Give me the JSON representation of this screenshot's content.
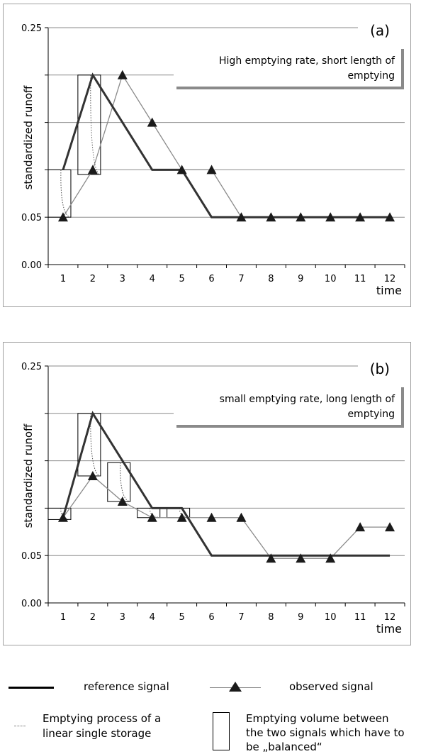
{
  "chart_data": [
    {
      "type": "line",
      "panel_label": "(a)",
      "annotation": [
        "High emptying rate, short length of",
        "emptying"
      ],
      "ylabel": "standardized runoff",
      "xlabel": "time",
      "x": [
        1,
        2,
        3,
        4,
        5,
        6,
        7,
        8,
        9,
        10,
        11,
        12
      ],
      "x_tick_labels": [
        "1",
        "2",
        "3",
        "4",
        "5",
        "6",
        "7",
        "8",
        "9",
        "10",
        "11",
        "12"
      ],
      "y_tick_labels": [
        "0.00",
        "0.05",
        "0.25"
      ],
      "ylim": [
        0,
        0.25
      ],
      "series": [
        {
          "role": "reference",
          "values": [
            0.1,
            0.2,
            0.15,
            0.1,
            0.1,
            0.05,
            0.05,
            0.05,
            0.05,
            0.05,
            0.05,
            0.05
          ]
        },
        {
          "role": "observed",
          "values": [
            0.05,
            0.1,
            0.2,
            0.15,
            0.1,
            0.1,
            0.05,
            0.05,
            0.05,
            0.05,
            0.05,
            0.05
          ]
        }
      ],
      "emptying_boxes": [
        {
          "x": 1,
          "y_top": 0.1,
          "y_bottom": 0.05
        },
        {
          "x": 2,
          "y_top": 0.2,
          "y_bottom": 0.095
        }
      ]
    },
    {
      "type": "line",
      "panel_label": "(b)",
      "annotation": [
        "small emptying rate,  long length of",
        "emptying"
      ],
      "ylabel": "standardized runoff",
      "xlabel": "time",
      "x": [
        1,
        2,
        3,
        4,
        5,
        6,
        7,
        8,
        9,
        10,
        11,
        12
      ],
      "x_tick_labels": [
        "1",
        "2",
        "3",
        "4",
        "5",
        "6",
        "7",
        "8",
        "9",
        "10",
        "11",
        "12"
      ],
      "y_tick_labels": [
        "0.00",
        "0.05",
        "0.25"
      ],
      "ylim": [
        0,
        0.25
      ],
      "series": [
        {
          "role": "reference",
          "values": [
            0.09,
            0.2,
            0.15,
            0.1,
            0.1,
            0.05,
            0.05,
            0.05,
            0.05,
            0.05,
            0.05,
            0.05
          ]
        },
        {
          "role": "observed",
          "values": [
            0.09,
            0.134,
            0.107,
            0.09,
            0.09,
            0.09,
            0.09,
            0.047,
            0.047,
            0.047,
            0.08,
            0.08
          ]
        }
      ],
      "emptying_boxes": [
        {
          "x": 1,
          "y_top": 0.1,
          "y_bottom": 0.088
        },
        {
          "x": 2,
          "y_top": 0.2,
          "y_bottom": 0.134
        },
        {
          "x": 3,
          "y_top": 0.148,
          "y_bottom": 0.107
        },
        {
          "x": 4,
          "y_top": 0.1,
          "y_bottom": 0.09
        },
        {
          "x": 5,
          "y_top": 0.1,
          "y_bottom": 0.09
        }
      ]
    }
  ],
  "legend": {
    "reference_label": "reference signal",
    "observed_label": "observed signal",
    "storage_label": [
      "Emptying process of a",
      "linear single storage"
    ],
    "volume_label": [
      "Emptying volume between",
      "the two signals which have to",
      "be „balanced“"
    ]
  }
}
